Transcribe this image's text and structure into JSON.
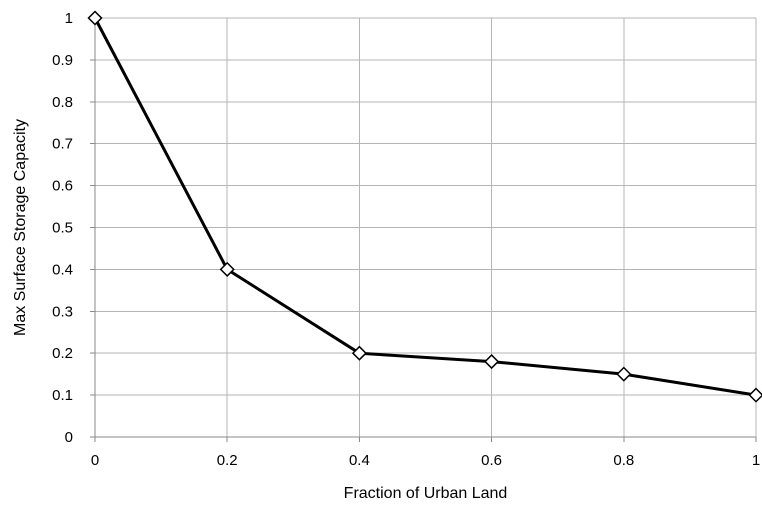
{
  "chart_data": {
    "type": "line",
    "title": "",
    "xlabel": "Fraction of Urban Land",
    "ylabel": "Max Surface Storage Capacity",
    "xlim": [
      0,
      1
    ],
    "ylim": [
      0,
      1
    ],
    "x_ticks": [
      0,
      0.2,
      0.4,
      0.6,
      0.8,
      1
    ],
    "x_tick_labels": [
      "0",
      "0.2",
      "0.4",
      "0.6",
      "0.8",
      "1"
    ],
    "y_ticks": [
      0,
      0.1,
      0.2,
      0.3,
      0.4,
      0.5,
      0.6,
      0.7,
      0.8,
      0.9,
      1
    ],
    "y_tick_labels": [
      "0",
      "0.1",
      "0.2",
      "0.3",
      "0.4",
      "0.5",
      "0.6",
      "0.7",
      "0.8",
      "0.9",
      "1"
    ],
    "grid": true,
    "legend": "none",
    "series": [
      {
        "x": [
          0,
          0.2,
          0.4,
          0.6,
          0.8,
          1
        ],
        "y": [
          1,
          0.4,
          0.2,
          0.18,
          0.15,
          0.1
        ],
        "color": "#000000",
        "marker": "diamond-open"
      }
    ]
  }
}
